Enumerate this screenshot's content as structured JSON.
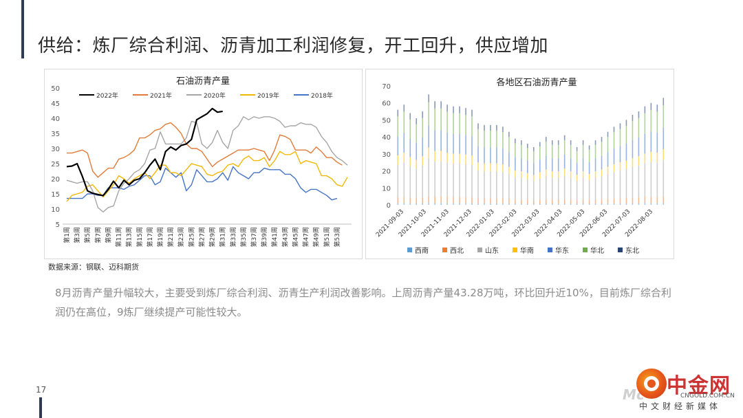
{
  "slide": {
    "title": "供给：炼厂综合利润、沥青加工利润修复，开工回升，供应增加",
    "source": "数据来源：钢联、迈科期货",
    "description": "8月沥青产量升幅较大，主要受到炼厂综合利润、沥青生产利润改善影响。上周沥青产量43.28万吨，环比回升近10%，目前炼厂综合利润仍在高位，9炼厂继续提产可能性较大。",
    "page_number": "17"
  },
  "logo": {
    "name": "中金网",
    "url": "CNGOLD.COM.CN",
    "subtitle": "中文财经新媒体",
    "watermark": "Mc"
  },
  "chart_data": [
    {
      "type": "line",
      "title": "石油沥青产量",
      "ylim": [
        5,
        50
      ],
      "yticks": [
        5,
        10,
        15,
        20,
        25,
        30,
        35,
        40,
        45,
        50
      ],
      "x_labels": [
        "第1周",
        "第3周",
        "第5周",
        "第7周",
        "第9周",
        "第11周",
        "第13周",
        "第15周",
        "第17周",
        "第19周",
        "第21周",
        "第23周",
        "第25周",
        "第27周",
        "第29周",
        "第31周",
        "第33周",
        "第35周",
        "第37周",
        "第39周",
        "第41周",
        "第43周",
        "第45周",
        "第47周",
        "第49周",
        "第51周",
        "第53周"
      ],
      "series": [
        {
          "name": "2022年",
          "color": "#000000",
          "width": 2.2,
          "values": [
            null,
            24,
            24.2,
            25,
            20.8,
            16,
            15.2,
            14.8,
            14.4,
            16.5,
            19.2,
            17,
            19.5,
            18,
            19.5,
            20,
            22,
            24.5,
            26.5,
            23,
            29,
            30.5,
            29.5,
            31,
            31.5,
            33,
            39.5,
            40.5,
            41.5,
            43.2,
            42,
            42.3
          ]
        },
        {
          "name": "2021年",
          "color": "#e07b39",
          "width": 1.4,
          "values": [
            null,
            28.5,
            28.5,
            29,
            29.5,
            28.5,
            22.5,
            20.5,
            22,
            23.5,
            23.5,
            26.5,
            27,
            28,
            29.5,
            33.5,
            33.5,
            34.5,
            36,
            36.5,
            38,
            38.5,
            37,
            35,
            31.5,
            30,
            30,
            29,
            26.5,
            24,
            25.5,
            26.5,
            27.5,
            28.5,
            29.5,
            29.5,
            29.5,
            30,
            29.5,
            29,
            26,
            29.5,
            34.5,
            34,
            33,
            29.5,
            29.5,
            29.5,
            28.5,
            30.5,
            29,
            27,
            27,
            25.5,
            24.5
          ]
        },
        {
          "name": "2020年",
          "color": "#a5a5a5",
          "width": 1.4,
          "values": [
            null,
            19.5,
            19,
            18.5,
            19,
            19,
            16,
            10.5,
            9,
            10.5,
            11,
            16,
            18.5,
            20,
            22,
            23,
            25,
            29.5,
            30,
            35.5,
            31.5,
            31.5,
            31.5,
            31.5,
            33.5,
            39,
            38.5,
            31.5,
            30,
            32,
            36,
            32,
            30,
            36,
            37.5,
            40.5,
            39.5,
            40.5,
            40,
            40.5,
            40.5,
            40,
            39,
            37,
            37.5,
            37.5,
            38.5,
            38,
            38,
            37,
            34,
            32,
            29,
            27,
            26,
            24.5
          ]
        },
        {
          "name": "2019年",
          "color": "#f2b705",
          "width": 1.4,
          "values": [
            null,
            12.5,
            14.5,
            15,
            15.5,
            17.5,
            18,
            16,
            14,
            16,
            18,
            21,
            20,
            18.5,
            20,
            21,
            22,
            20,
            22,
            24.5,
            24.5,
            22,
            22,
            21,
            23,
            25,
            24.5,
            24,
            21.5,
            21,
            22,
            22.5,
            24.5,
            25,
            24,
            26.5,
            27.5,
            26,
            26,
            27,
            24,
            26,
            29,
            28,
            28,
            29,
            25,
            26,
            25.5,
            25,
            21,
            21,
            20,
            18,
            17.5,
            20.5
          ]
        },
        {
          "name": "2018年",
          "color": "#4472c4",
          "width": 1.4,
          "values": [
            null,
            13.5,
            13.5,
            13.5,
            13.5,
            15,
            15,
            14.5,
            14.5,
            17,
            17,
            17,
            16.5,
            17.5,
            18,
            19.5,
            21,
            21,
            18,
            19,
            23.5,
            22,
            20.5,
            22,
            16,
            18,
            23,
            21,
            19,
            19,
            20,
            22,
            19.5,
            24,
            22,
            21,
            20,
            22,
            22,
            23.5,
            23,
            23,
            23,
            21.5,
            21.5,
            20,
            17,
            15.5,
            16.5,
            16.5,
            15.5,
            14.5,
            13,
            13.5
          ]
        }
      ]
    },
    {
      "type": "bar",
      "stacked": true,
      "title": "各地区石油沥青产量",
      "ylim": [
        0,
        70
      ],
      "yticks": [
        0,
        10,
        20,
        30,
        40,
        50,
        60,
        70
      ],
      "x_labels": [
        "2021-09-03",
        "2021-10-03",
        "2021-11-03",
        "2021-12-03",
        "2022-01-03",
        "2022-02-03",
        "2022-03-03",
        "2022-04-03",
        "2022-05-03",
        "2022-06-03",
        "2022-07-03",
        "2022-08-03"
      ],
      "totals": [
        56,
        59,
        54,
        51,
        55,
        65,
        61,
        61,
        59,
        58,
        58,
        57,
        56,
        48,
        47,
        47,
        47,
        46,
        43,
        39,
        38,
        36,
        34,
        37,
        40,
        38,
        38,
        41,
        38,
        34,
        38,
        35,
        38,
        40,
        43,
        46,
        48,
        50,
        53,
        55,
        58,
        60,
        59,
        63
      ],
      "series": [
        {
          "name": "西南",
          "color": "#5b9bd5",
          "share": 0.02
        },
        {
          "name": "西北",
          "color": "#ed7d31",
          "share": 0.06
        },
        {
          "name": "山东",
          "color": "#a5a5a5",
          "share": 0.34
        },
        {
          "name": "华南",
          "color": "#ffc000",
          "share": 0.1
        },
        {
          "name": "华东",
          "color": "#4472c4",
          "share": 0.2
        },
        {
          "name": "华北",
          "color": "#70ad47",
          "share": 0.21
        },
        {
          "name": "东北",
          "color": "#264478",
          "share": 0.07
        }
      ]
    }
  ]
}
